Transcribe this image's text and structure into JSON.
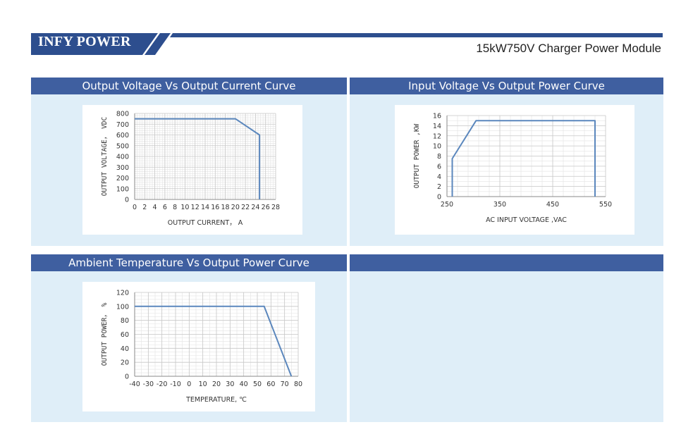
{
  "header": {
    "brand": "INFY POWER",
    "subtitle": "15kW750V Charger Power Module",
    "accent_color": "#2d4e8e",
    "panel_title_color": "#3f5fa0",
    "panel_bg_color": "#dfeef8"
  },
  "panels": [
    {
      "title": "Output Voltage Vs Output Current Curve"
    },
    {
      "title": "Input Voltage Vs Output Power Curve"
    },
    {
      "title": "Ambient Temperature Vs Output Power Curve"
    },
    {
      "title": ""
    }
  ],
  "chart_data": [
    {
      "type": "line",
      "xlabel": "OUTPUT CURRENT， A",
      "ylabel": "OUTPUT VOLTAGE， VDC",
      "xlim": [
        0,
        28
      ],
      "ylim": [
        0,
        800
      ],
      "xticks": [
        "0",
        "2",
        "4",
        "6",
        "8",
        "10",
        "12",
        "14",
        "16",
        "18",
        "20",
        "22",
        "24",
        "26",
        "28"
      ],
      "yticks": [
        "0",
        "100",
        "200",
        "300",
        "400",
        "500",
        "600",
        "700",
        "800"
      ],
      "grid": true,
      "line_color": "#5b87bd",
      "series": [
        {
          "x": [
            0,
            20,
            24.8,
            24.8
          ],
          "y": [
            750,
            750,
            600,
            0
          ]
        }
      ]
    },
    {
      "type": "line",
      "xlabel": "AC INPUT VOLTAGE ,VAC",
      "ylabel": "OUTPUT POWER ,KW",
      "xlim": [
        250,
        550
      ],
      "ylim": [
        0,
        16
      ],
      "xticks": [
        "250",
        "350",
        "450",
        "550"
      ],
      "yticks": [
        "0",
        "2",
        "4",
        "6",
        "8",
        "10",
        "12",
        "14",
        "16"
      ],
      "grid": true,
      "line_color": "#5b87bd",
      "series": [
        {
          "x": [
            260,
            260,
            305,
            530,
            530
          ],
          "y": [
            0,
            7.5,
            15,
            15,
            0
          ]
        }
      ]
    },
    {
      "type": "line",
      "xlabel": "TEMPERATURE, ℃",
      "ylabel": "OUTPUT POWER， %",
      "xlim": [
        -40,
        80
      ],
      "ylim": [
        0,
        120
      ],
      "xticks": [
        "-40",
        "-30",
        "-20",
        "-10",
        "0",
        "10",
        "20",
        "30",
        "40",
        "50",
        "60",
        "70",
        "80"
      ],
      "yticks": [
        "0",
        "20",
        "40",
        "60",
        "80",
        "100",
        "120"
      ],
      "grid": true,
      "line_color": "#5b87bd",
      "series": [
        {
          "x": [
            -40,
            55,
            75
          ],
          "y": [
            100,
            100,
            0
          ]
        }
      ]
    }
  ]
}
